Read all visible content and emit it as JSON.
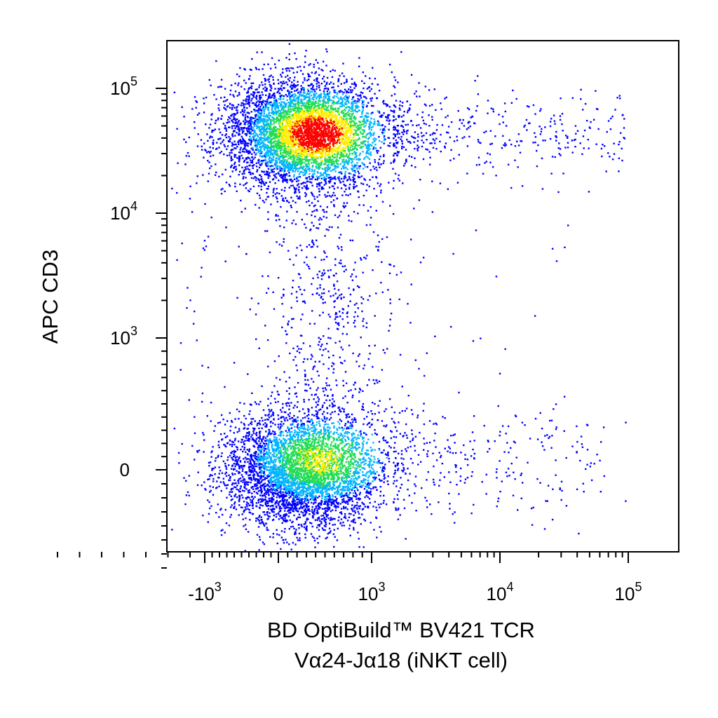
{
  "chart_data": {
    "type": "scatter",
    "plot_style": "density dot plot (flow cytometry, biexponential axes)",
    "title": "",
    "xlabel": [
      "BD OptiBuild™ BV421 TCR",
      "Vα24-Jα18 (iNKT cell)"
    ],
    "ylabel": "APC CD3",
    "x_scale": "biexponential",
    "y_scale": "biexponential",
    "x_ticks": [
      {
        "value": -1000,
        "label": "-10",
        "exp": "3"
      },
      {
        "value": 0,
        "label": "0",
        "exp": ""
      },
      {
        "value": 1000,
        "label": "10",
        "exp": "3"
      },
      {
        "value": 10000,
        "label": "10",
        "exp": "4"
      },
      {
        "value": 100000,
        "label": "10",
        "exp": "5"
      }
    ],
    "y_ticks": [
      {
        "value": 0,
        "label": "0",
        "exp": ""
      },
      {
        "value": 1000,
        "label": "10",
        "exp": "3"
      },
      {
        "value": 10000,
        "label": "10",
        "exp": "4"
      },
      {
        "value": 100000,
        "label": "10",
        "exp": "5"
      }
    ],
    "xlim": [
      -3000,
      200000
    ],
    "ylim": [
      -700,
      200000
    ],
    "grid": false,
    "legend": "none",
    "populations": [
      {
        "name": "",
        "x_center": 250,
        "y_center": 45000,
        "relative_density": "highest",
        "peak_color": "#ff0000"
      },
      {
        "name": "",
        "x_center": 250,
        "y_center": 0,
        "relative_density": "high",
        "peak_color": "#33dd44"
      }
    ],
    "sparse_regions": [
      {
        "x_range": [
          1500,
          80000
        ],
        "y_range": [
          20000,
          80000
        ]
      },
      {
        "x_range": [
          1500,
          80000
        ],
        "y_range": [
          -300,
          400
        ]
      },
      {
        "x_range": [
          -200,
          800
        ],
        "y_range": [
          300,
          15000
        ]
      }
    ],
    "colors": {
      "low_density": "#0000ff",
      "mid_low": "#00b4ff",
      "mid": "#22dd55",
      "mid_high": "#ffee00",
      "high_density": "#ff0000"
    }
  }
}
